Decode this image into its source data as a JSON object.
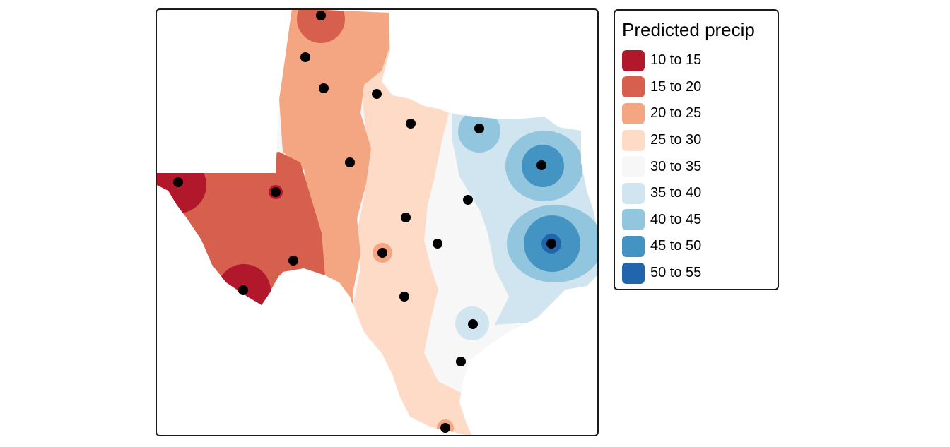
{
  "legend": {
    "title": "Predicted precip",
    "items": [
      {
        "label": "10 to 15",
        "color": "#b2182b"
      },
      {
        "label": "15 to 20",
        "color": "#d6604d"
      },
      {
        "label": "20 to 25",
        "color": "#f4a582"
      },
      {
        "label": "25 to 30",
        "color": "#fddbc7"
      },
      {
        "label": "30 to 35",
        "color": "#f7f7f7"
      },
      {
        "label": "35 to 40",
        "color": "#d1e5f0"
      },
      {
        "label": "40 to 45",
        "color": "#92c5de"
      },
      {
        "label": "45 to 50",
        "color": "#4393c3"
      },
      {
        "label": "50 to 55",
        "color": "#2166ac"
      }
    ]
  },
  "map": {
    "station_color": "#000000"
  }
}
